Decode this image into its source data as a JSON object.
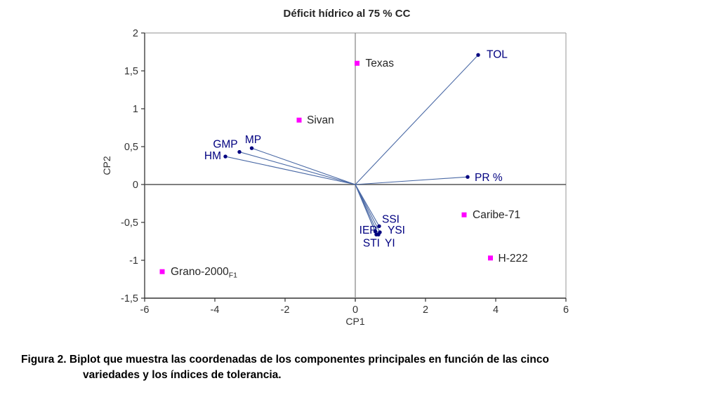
{
  "figure": {
    "title": "Déficit hídrico al 75 % CC",
    "caption_line1": "Figura 2. Biplot que muestra las coordenadas de los componentes principales en función de las cinco",
    "caption_line2": "variedades y los índices de tolerancia."
  },
  "chart_data": {
    "type": "scatter",
    "subtype": "pca-biplot",
    "title": "Déficit hídrico al 75 % CC",
    "xlabel": "CP1",
    "ylabel": "CP2",
    "xlim": [
      -6,
      6
    ],
    "ylim": [
      -1.5,
      2
    ],
    "x_tick_values": [
      -6,
      -4,
      -2,
      0,
      2,
      4,
      6
    ],
    "x_tick_labels": [
      "-6",
      "-4",
      "-2",
      "0",
      "2",
      "4",
      "6"
    ],
    "y_tick_values": [
      2,
      1.5,
      1,
      0.5,
      0,
      -0.5,
      -1,
      -1.5
    ],
    "y_tick_labels": [
      "2",
      "1,5",
      "1",
      "0,5",
      "0",
      "-0,5",
      "-1",
      "-1,5"
    ],
    "grid": false,
    "legend": "none",
    "zero_lines": true,
    "colors": {
      "variety_marker": "#ff00ff",
      "variety_label": "#262626",
      "index_point": "#000080",
      "index_label": "#000080",
      "vector_line": "#4a69a5",
      "axis_dark": "#333333",
      "axis_gray": "#a8a8a8",
      "zero_line_v": "#8c8c8c",
      "zero_line_h": "#555555",
      "tick_label": "#333333"
    },
    "series": [
      {
        "name": "variedades",
        "marker": "square",
        "points": [
          {
            "label": "Texas",
            "x": 0.05,
            "y": 1.6,
            "label_dx": 12,
            "label_dy": 5,
            "anchor": "start"
          },
          {
            "label": "Sivan",
            "x": -1.6,
            "y": 0.85,
            "label_dx": 11,
            "label_dy": 5,
            "anchor": "start"
          },
          {
            "label": "Caribe-71",
            "x": 3.1,
            "y": -0.4,
            "label_dx": 12,
            "label_dy": 5,
            "anchor": "start"
          },
          {
            "label": "H-222",
            "x": 3.85,
            "y": -0.97,
            "label_dx": 11,
            "label_dy": 5,
            "anchor": "start"
          },
          {
            "label": "Grano-2000",
            "label_sub": "F1",
            "x": -5.5,
            "y": -1.15,
            "label_dx": 12,
            "label_dy": 5,
            "anchor": "start"
          }
        ]
      },
      {
        "name": "índices de tolerancia",
        "marker": "circle",
        "vectors_from_origin": true,
        "points": [
          {
            "label": "TOL",
            "x": 3.5,
            "y": 1.71,
            "label_dx": 12,
            "label_dy": 4,
            "anchor": "start"
          },
          {
            "label": "PR %",
            "x": 3.2,
            "y": 0.1,
            "label_dx": 10,
            "label_dy": 6,
            "anchor": "start"
          },
          {
            "label": "MP",
            "x": -2.95,
            "y": 0.48,
            "label_dx": 2,
            "label_dy": -7,
            "anchor": "middle"
          },
          {
            "label": "GMP",
            "x": -3.3,
            "y": 0.43,
            "label_dx": -20,
            "label_dy": -6,
            "anchor": "middle"
          },
          {
            "label": "HM",
            "x": -3.7,
            "y": 0.37,
            "label_dx": -6,
            "label_dy": 4,
            "anchor": "end"
          },
          {
            "label": "SSI",
            "x": 0.68,
            "y": -0.55,
            "label_dx": 4,
            "label_dy": -5,
            "anchor": "start"
          },
          {
            "label": "IER",
            "x": 0.57,
            "y": -0.62,
            "label_dx": 3,
            "label_dy": 3,
            "anchor": "end"
          },
          {
            "label": "YSI",
            "x": 0.7,
            "y": -0.63,
            "label_dx": 11,
            "label_dy": 2,
            "anchor": "start"
          },
          {
            "label": "STI",
            "x": 0.6,
            "y": -0.66,
            "label_dx": 5,
            "label_dy": 17,
            "anchor": "end"
          },
          {
            "label": "YI",
            "x": 0.66,
            "y": -0.66,
            "label_dx": 9,
            "label_dy": 17,
            "anchor": "start"
          }
        ]
      }
    ]
  }
}
